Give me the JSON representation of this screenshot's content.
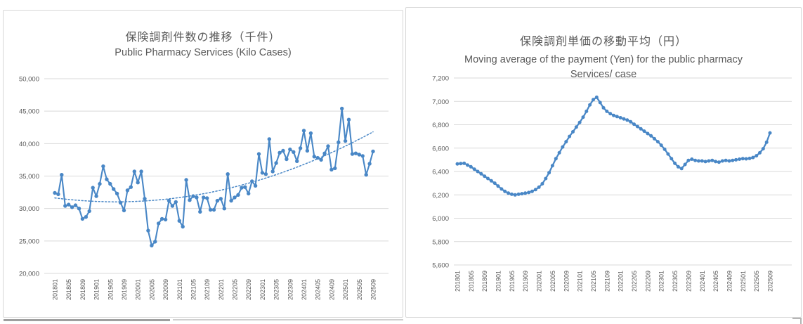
{
  "colors": {
    "series": "#4987C6",
    "grid": "#D9D9D9",
    "text": "#595959",
    "border": "#D7D7D7",
    "background": "#FFFFFF"
  },
  "chart_data": [
    {
      "type": "line",
      "title": "保険調剤件数の推移（千件）",
      "subtitle": "Public Pharmacy Services (Kilo Cases)",
      "xlabel": "",
      "ylabel": "",
      "ylim": [
        20000,
        50000
      ],
      "ytick": 5000,
      "xtick_every": 4,
      "grid": true,
      "legend": "none",
      "trendline": true,
      "x": [
        "201801",
        "201802",
        "201803",
        "201804",
        "201805",
        "201806",
        "201807",
        "201808",
        "201809",
        "201810",
        "201811",
        "201812",
        "201901",
        "201902",
        "201903",
        "201904",
        "201905",
        "201906",
        "201907",
        "201908",
        "201909",
        "201910",
        "201911",
        "201912",
        "202001",
        "202002",
        "202003",
        "202004",
        "202005",
        "202006",
        "202007",
        "202008",
        "202009",
        "202010",
        "202011",
        "202012",
        "202101",
        "202102",
        "202103",
        "202104",
        "202105",
        "202106",
        "202107",
        "202108",
        "202109",
        "202110",
        "202111",
        "202112",
        "202201",
        "202202",
        "202203",
        "202204",
        "202205",
        "202206",
        "202207",
        "202208",
        "202209",
        "202210",
        "202211",
        "202212",
        "202301",
        "202302",
        "202303",
        "202304",
        "202305",
        "202306",
        "202307",
        "202308",
        "202309",
        "202310",
        "202311",
        "202312",
        "202401",
        "202402",
        "202403",
        "202404",
        "202405",
        "202406",
        "202407",
        "202408",
        "202409",
        "202410",
        "202411",
        "202412",
        "202501",
        "202502",
        "202503",
        "202504",
        "202505",
        "202506",
        "202507",
        "202508",
        "202509"
      ],
      "series": [
        {
          "values": [
            32400,
            32200,
            35200,
            30400,
            30600,
            30200,
            30500,
            30000,
            28400,
            28700,
            29600,
            33200,
            31900,
            33800,
            36500,
            34500,
            33800,
            33000,
            32300,
            30900,
            29700,
            32800,
            33300,
            35700,
            34000,
            35700,
            31500,
            26600,
            24300,
            24900,
            27700,
            28400,
            28300,
            31200,
            30400,
            31000,
            28100,
            27200,
            34400,
            31300,
            31900,
            31700,
            29500,
            31700,
            31600,
            29800,
            29800,
            31200,
            31500,
            30000,
            35300,
            31200,
            31700,
            32100,
            33200,
            33300,
            32300,
            34200,
            33500,
            38400,
            35500,
            35300,
            40700,
            35700,
            37000,
            38600,
            38900,
            37600,
            39100,
            38700,
            37300,
            39300,
            42000,
            38900,
            41600,
            38000,
            37800,
            37500,
            38500,
            39600,
            36000,
            36200,
            40200,
            45400,
            40400,
            43700,
            38400,
            38500,
            38300,
            38100,
            35200,
            36900,
            38800
          ]
        }
      ]
    },
    {
      "type": "line",
      "title": "保険調剤単価の移動平均（円）",
      "subtitle": "Moving average of the payment (Yen) for the public pharmacy Services/ case",
      "xlabel": "",
      "ylabel": "",
      "ylim": [
        5600,
        7200
      ],
      "ytick": 200,
      "xtick_every": 4,
      "grid": true,
      "legend": "none",
      "trendline": false,
      "x": [
        "201801",
        "201802",
        "201803",
        "201804",
        "201805",
        "201806",
        "201807",
        "201808",
        "201809",
        "201810",
        "201811",
        "201812",
        "201901",
        "201902",
        "201903",
        "201904",
        "201905",
        "201906",
        "201907",
        "201908",
        "201909",
        "201910",
        "201911",
        "201912",
        "202001",
        "202002",
        "202003",
        "202004",
        "202005",
        "202006",
        "202007",
        "202008",
        "202009",
        "202010",
        "202011",
        "202012",
        "202101",
        "202102",
        "202103",
        "202104",
        "202105",
        "202106",
        "202107",
        "202108",
        "202109",
        "202110",
        "202111",
        "202112",
        "202201",
        "202202",
        "202203",
        "202204",
        "202205",
        "202206",
        "202207",
        "202208",
        "202209",
        "202210",
        "202211",
        "202212",
        "202301",
        "202302",
        "202303",
        "202304",
        "202305",
        "202306",
        "202307",
        "202308",
        "202309",
        "202310",
        "202311",
        "202312",
        "202401",
        "202402",
        "202403",
        "202404",
        "202405",
        "202406",
        "202407",
        "202408",
        "202409",
        "202410",
        "202411",
        "202412",
        "202501",
        "202502",
        "202503",
        "202504",
        "202505",
        "202506",
        "202507",
        "202508",
        "202509"
      ],
      "series": [
        {
          "values": [
            6465,
            6468,
            6470,
            6455,
            6440,
            6420,
            6400,
            6380,
            6360,
            6340,
            6320,
            6300,
            6275,
            6250,
            6230,
            6215,
            6205,
            6200,
            6205,
            6210,
            6215,
            6220,
            6230,
            6245,
            6265,
            6295,
            6340,
            6390,
            6450,
            6510,
            6560,
            6610,
            6655,
            6700,
            6740,
            6780,
            6820,
            6865,
            6915,
            6970,
            7015,
            7035,
            6990,
            6945,
            6915,
            6895,
            6880,
            6870,
            6860,
            6850,
            6840,
            6825,
            6805,
            6785,
            6765,
            6745,
            6725,
            6705,
            6680,
            6655,
            6625,
            6590,
            6550,
            6510,
            6470,
            6440,
            6425,
            6460,
            6495,
            6505,
            6495,
            6490,
            6490,
            6485,
            6490,
            6495,
            6485,
            6480,
            6490,
            6495,
            6490,
            6495,
            6500,
            6505,
            6510,
            6508,
            6512,
            6520,
            6535,
            6560,
            6595,
            6650,
            6730
          ]
        }
      ]
    }
  ]
}
